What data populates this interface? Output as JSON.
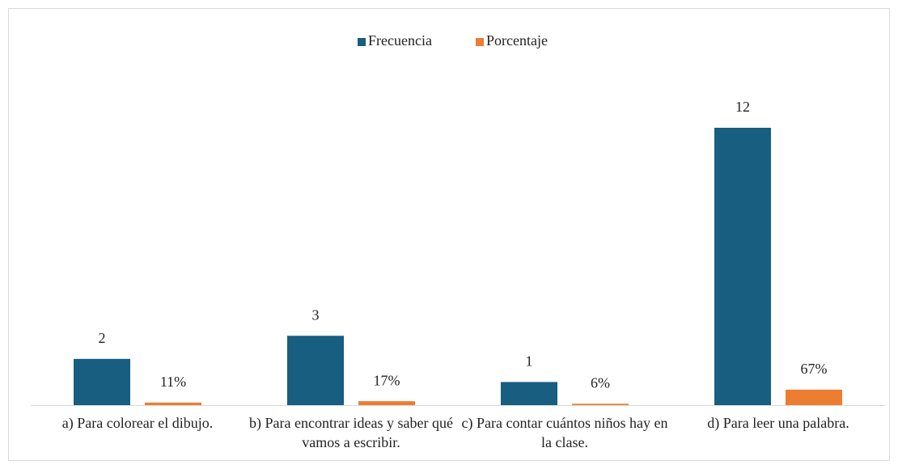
{
  "chart_data": {
    "type": "bar",
    "categories": [
      "a) Para colorear el dibujo.",
      "b) Para encontrar ideas y saber qué vamos a escribir.",
      "c) Para contar cuántos niños hay en la clase.",
      "d) Para leer una palabra."
    ],
    "series": [
      {
        "name": "Frecuencia",
        "color": "#175e80",
        "values": [
          2,
          3,
          1,
          12
        ]
      },
      {
        "name": "Porcentaje",
        "color": "#ed7d31",
        "values": [
          0.11,
          0.17,
          0.06,
          0.67
        ],
        "value_labels": [
          "11%",
          "17%",
          "6%",
          "67%"
        ]
      }
    ],
    "legend": "top",
    "grid": false
  }
}
